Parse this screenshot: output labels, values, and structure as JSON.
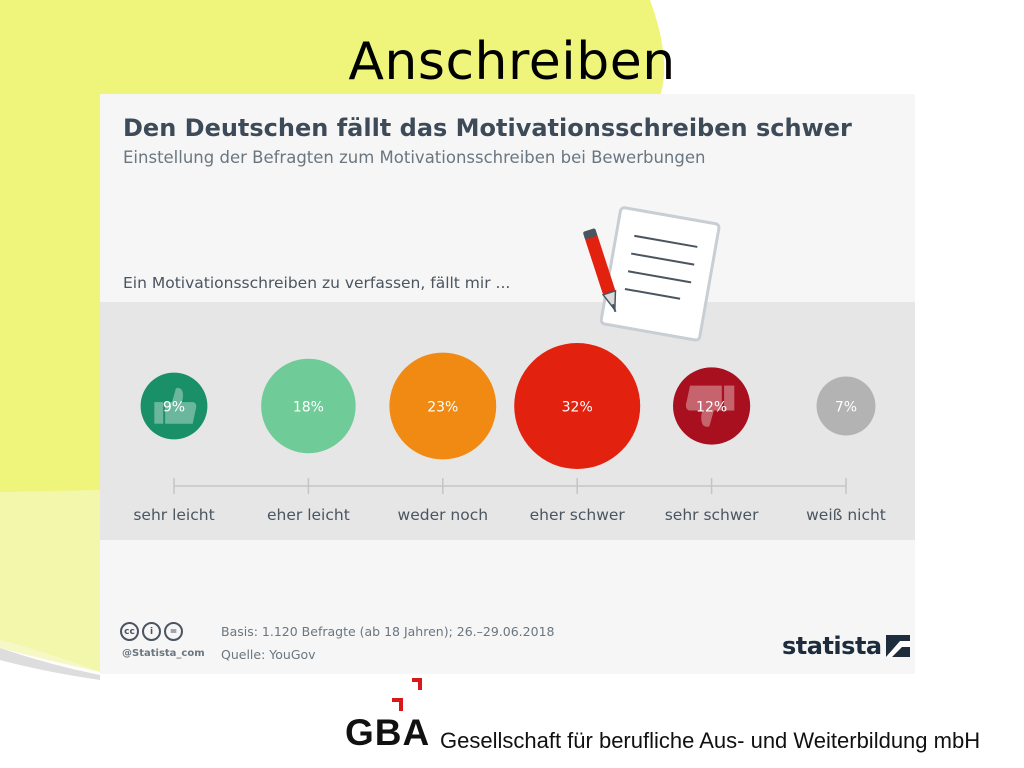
{
  "slide": {
    "title": "Anschreiben"
  },
  "card": {
    "title": "Den Deutschen fällt das Motivationsschreiben schwer",
    "subtitle": "Einstellung der Befragten zum Motivationsschreiben bei Bewerbungen",
    "question": "Ein Motivationsschreiben zu verfassen, fällt mir ..."
  },
  "chart_data": {
    "type": "bubble",
    "title": "Den Deutschen fällt das Motivationsschreiben schwer",
    "subtitle": "Einstellung der Befragten zum Motivationsschreiben bei Bewerbungen",
    "categories": [
      "sehr leicht",
      "eher leicht",
      "weder noch",
      "eher schwer",
      "sehr schwer",
      "weiß nicht"
    ],
    "values": [
      9,
      18,
      23,
      32,
      12,
      7
    ],
    "labels": [
      "9%",
      "18%",
      "23%",
      "32%",
      "12%",
      "7%"
    ],
    "unit": "%",
    "colors": [
      "#1a9068",
      "#6fcb97",
      "#f08a12",
      "#e3210f",
      "#a8101f",
      "#b3b3b3"
    ],
    "icons": [
      "thumbs-up-icon",
      null,
      null,
      null,
      "thumbs-down-icon",
      null
    ]
  },
  "footer": {
    "handle": "@Statista_com",
    "basis": "Basis: 1.120 Befragte (ab 18 Jahren); 26.–29.06.2018",
    "source": "Quelle: YouGov",
    "brand": "statista",
    "license_icons": [
      "cc-icon",
      "attribution-icon",
      "no-derivatives-icon"
    ]
  },
  "org": {
    "logo_text": "GBA",
    "name": "Gesellschaft für berufliche Aus- und Weiterbildung mbH"
  },
  "colors": {
    "background_yellow": "#eef57a",
    "card_bg": "#f6f6f6",
    "band_bg": "#e6e6e6",
    "title_text": "#3d4a57",
    "gba_red": "#d7191c"
  }
}
